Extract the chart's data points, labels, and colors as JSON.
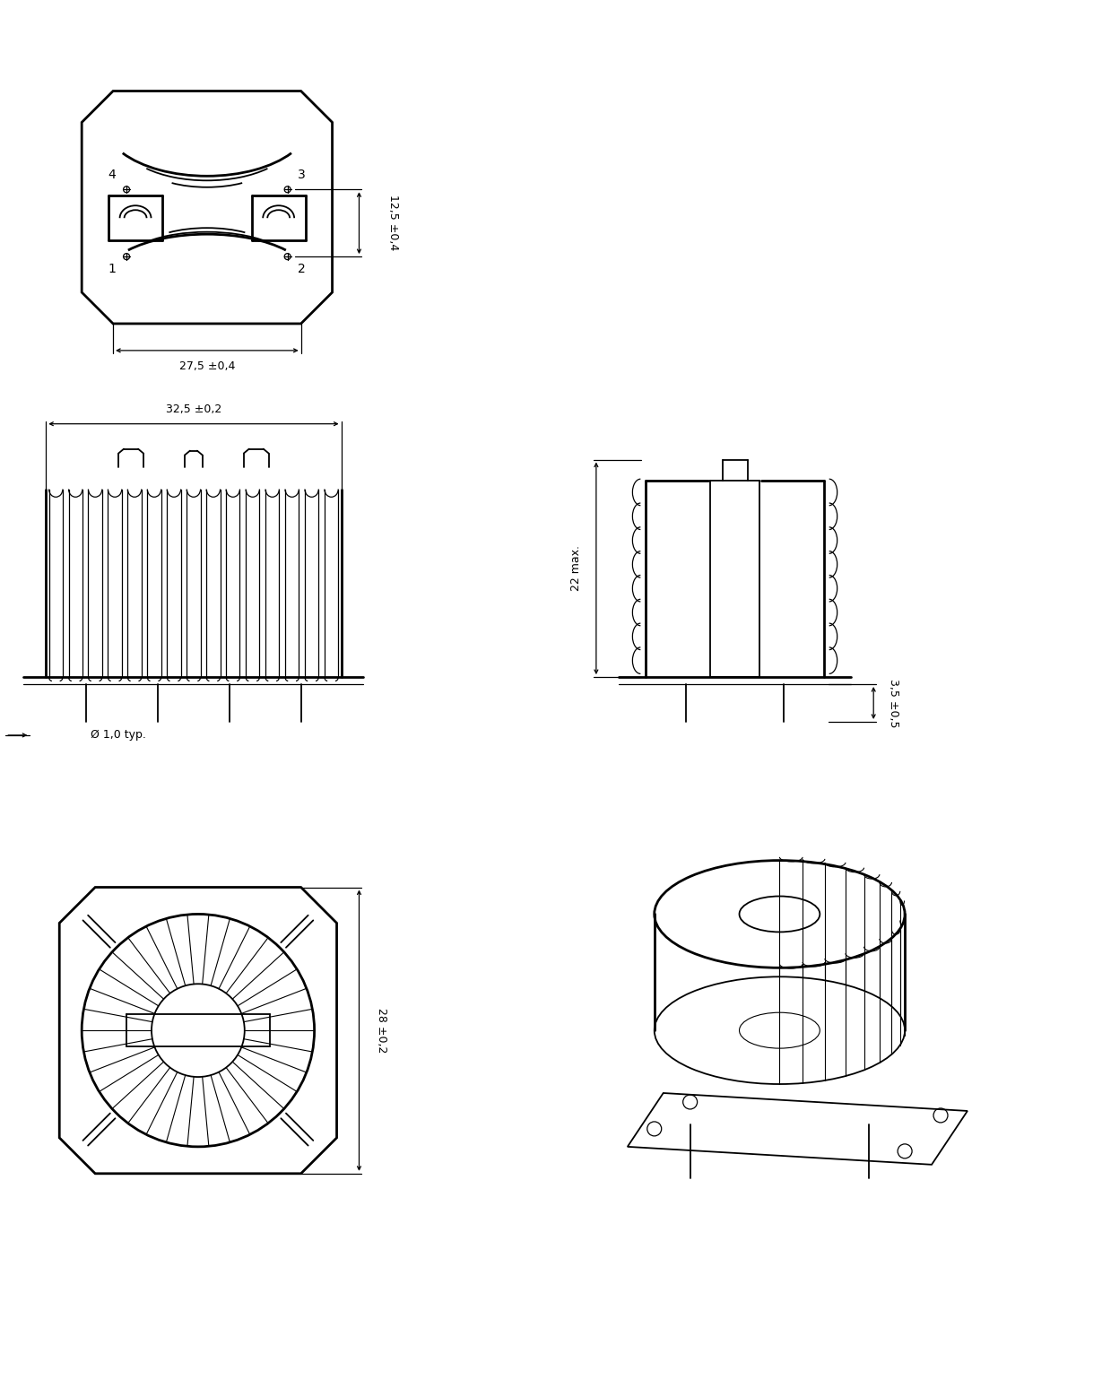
{
  "background_color": "#ffffff",
  "line_color": "#000000",
  "fig_width": 12.29,
  "fig_height": 15.58,
  "dpi": 100,
  "annotations": {
    "dim_12_5": "12,5 ±0,4",
    "dim_27_5": "27,5 ±0,4",
    "dim_32_5": "32,5 ±0,2",
    "dim_22": "22 max.",
    "dim_3_5": "3,5 ±0,5",
    "dim_28": "28 ±0,2",
    "dim_phi": "Ø 1,0 typ.",
    "pin1": "1",
    "pin2": "2",
    "pin3": "3",
    "pin4": "4"
  }
}
